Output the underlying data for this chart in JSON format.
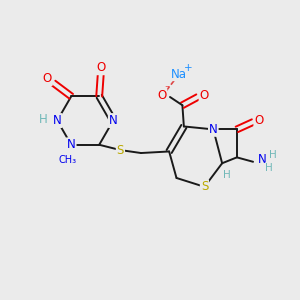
{
  "bg_color": "#ebebeb",
  "bond_color": "#1a1a1a",
  "bond_width": 1.4,
  "atom_colors": {
    "C": "#1a1a1a",
    "N": "#0000ee",
    "O": "#ee0000",
    "S": "#bbaa00",
    "Na": "#1e90ff",
    "H": "#70b8b8"
  },
  "font_size": 8.5
}
